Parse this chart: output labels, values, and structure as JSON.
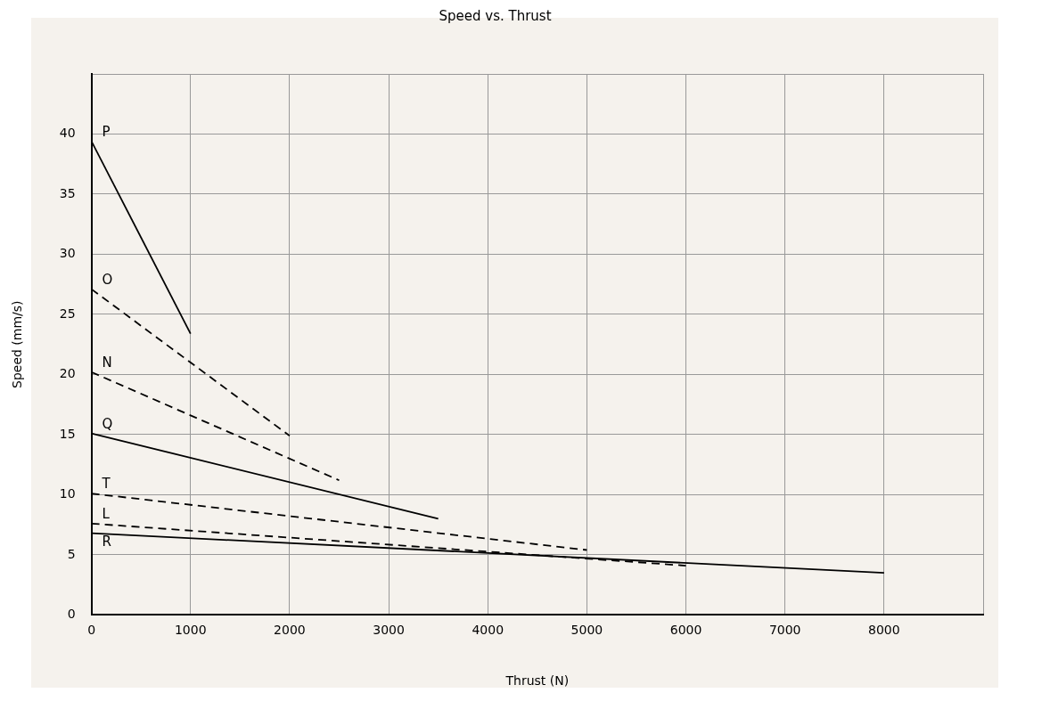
{
  "chart_data": {
    "type": "line",
    "title": "Speed vs. Thrust",
    "xlabel": "Thrust (N)",
    "ylabel": "Speed (mm/s)",
    "xlim": [
      0,
      9000
    ],
    "xticks": [
      0,
      1000,
      2000,
      3000,
      4000,
      5000,
      6000,
      7000,
      8000,
      {
        "value": 9000,
        "label": null
      }
    ],
    "ylim": [
      0,
      45
    ],
    "yticks": [
      0,
      5,
      10,
      15,
      20,
      25,
      30,
      35,
      40,
      {
        "value": 45,
        "label": null
      }
    ],
    "grid": true,
    "legend": false,
    "marker": "none",
    "series": [
      {
        "name": "P",
        "color": "#000000",
        "line_style": "solid",
        "x": [
          0,
          1000
        ],
        "values": [
          39.4,
          23.4
        ]
      },
      {
        "name": "O",
        "color": "#000000",
        "line_style": "dashed",
        "x": [
          0,
          2000
        ],
        "values": [
          27.1,
          14.9
        ]
      },
      {
        "name": "N",
        "color": "#000000",
        "line_style": "dashed",
        "x": [
          0,
          2500
        ],
        "values": [
          20.2,
          11.2
        ]
      },
      {
        "name": "Q",
        "color": "#000000",
        "line_style": "solid",
        "x": [
          0,
          3500
        ],
        "values": [
          15.1,
          8.0
        ]
      },
      {
        "name": "T",
        "color": "#000000",
        "line_style": "dashed",
        "x": [
          0,
          5000
        ],
        "values": [
          10.1,
          5.4
        ]
      },
      {
        "name": "L",
        "color": "#000000",
        "line_style": "dashed",
        "x": [
          0,
          6000
        ],
        "values": [
          7.6,
          4.1
        ]
      },
      {
        "name": "R",
        "color": "#000000",
        "line_style": "solid",
        "x": [
          0,
          8000
        ],
        "values": [
          6.8,
          3.5
        ]
      }
    ]
  }
}
